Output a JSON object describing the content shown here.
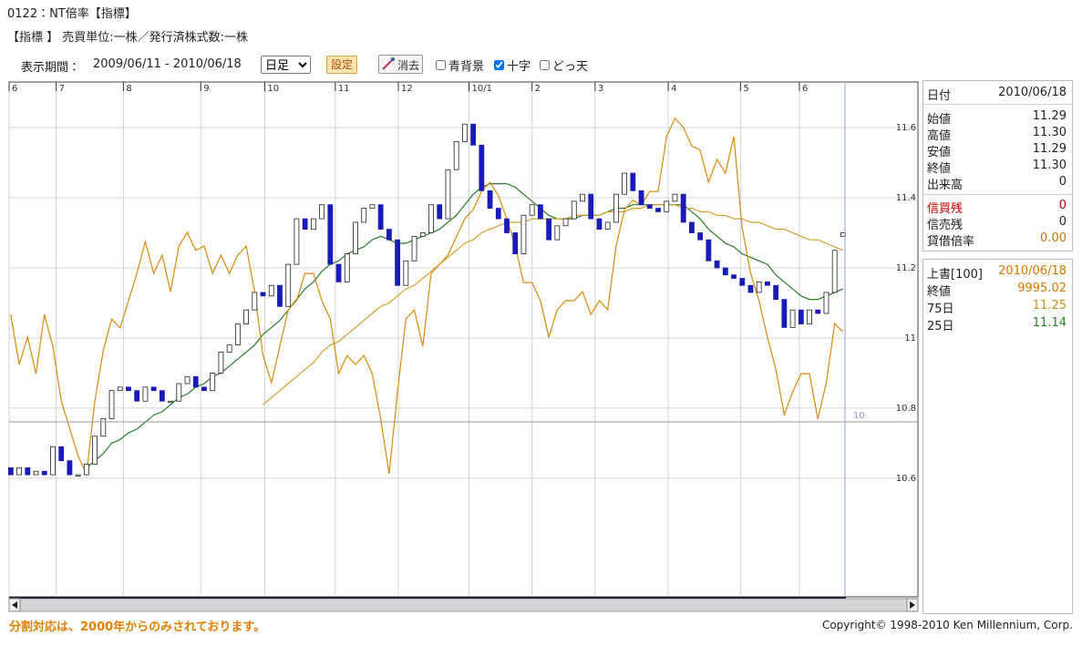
{
  "header": {
    "title": "0122：NT倍率【指標】",
    "subtitle": "【指標 】 売買単位:一株／発行済株式数:一株"
  },
  "toolbar": {
    "period_label": "表示期間：",
    "period": "2009/06/11 - 2010/06/18",
    "interval": "日足",
    "set_button": "設定",
    "clear_button": "消去",
    "options": [
      {
        "label": "青背景",
        "checked": false
      },
      {
        "label": "十字",
        "checked": true
      },
      {
        "label": "どっ天",
        "checked": false
      }
    ]
  },
  "chart_data": {
    "type": "candlestick",
    "xlim": [
      -0.2,
      107.9
    ],
    "xticks": [
      {
        "value": -0.2,
        "label": "6"
      },
      {
        "value": 5.4,
        "label": "7"
      },
      {
        "value": 13.4,
        "label": "8"
      },
      {
        "value": 22.6,
        "label": "9"
      },
      {
        "value": 30.2,
        "label": "10"
      },
      {
        "value": 38.6,
        "label": "11"
      },
      {
        "value": 46.1,
        "label": "12"
      },
      {
        "value": 54.5,
        "label": "10/1"
      },
      {
        "value": 62.0,
        "label": "2"
      },
      {
        "value": 69.5,
        "label": "3"
      },
      {
        "value": 78.2,
        "label": "4"
      },
      {
        "value": 86.8,
        "label": "5"
      },
      {
        "value": 93.8,
        "label": "6"
      }
    ],
    "ylim": [
      10.262,
      11.73
    ],
    "yticks": [
      11.6,
      11.4,
      11.2,
      11,
      10.8,
      10.6
    ],
    "y2lim": [
      8341,
      11555
    ],
    "grid": true,
    "up_color": "#ffffff",
    "down_color": "#1a1ab8",
    "open": [
      10.63,
      10.61,
      10.63,
      10.61,
      10.62,
      10.61,
      10.69,
      10.65,
      10.61,
      10.61,
      10.64,
      10.72,
      10.77,
      10.85,
      10.86,
      10.85,
      10.82,
      10.86,
      10.85,
      10.82,
      10.82,
      10.87,
      10.89,
      10.86,
      10.85,
      10.9,
      10.96,
      10.98,
      11.04,
      11.08,
      11.13,
      11.12,
      11.15,
      11.09,
      11.21,
      11.34,
      11.31,
      11.34,
      11.38,
      11.21,
      11.16,
      11.24,
      11.33,
      11.37,
      11.38,
      11.31,
      11.28,
      11.15,
      11.22,
      11.29,
      11.3,
      11.38,
      11.34,
      11.48,
      11.56,
      11.61,
      11.55,
      11.42,
      11.37,
      11.34,
      11.3,
      11.24,
      11.35,
      11.38,
      11.34,
      11.28,
      11.32,
      11.34,
      11.39,
      11.41,
      11.34,
      11.31,
      11.33,
      11.41,
      11.47,
      11.42,
      11.38,
      11.37,
      11.36,
      11.39,
      11.41,
      11.33,
      11.3,
      11.28,
      11.22,
      11.2,
      11.18,
      11.17,
      11.15,
      11.13,
      11.16,
      11.15,
      11.11,
      11.03,
      11.08,
      11.04,
      11.08,
      11.07,
      11.13,
      11.29
    ],
    "close": [
      10.61,
      10.63,
      10.61,
      10.62,
      10.61,
      10.69,
      10.65,
      10.61,
      10.61,
      10.64,
      10.72,
      10.77,
      10.85,
      10.86,
      10.85,
      10.82,
      10.86,
      10.85,
      10.82,
      10.82,
      10.87,
      10.89,
      10.86,
      10.85,
      10.9,
      10.96,
      10.98,
      11.04,
      11.08,
      11.13,
      11.12,
      11.15,
      11.09,
      11.21,
      11.34,
      11.31,
      11.34,
      11.38,
      11.21,
      11.16,
      11.24,
      11.33,
      11.37,
      11.38,
      11.31,
      11.28,
      11.15,
      11.22,
      11.29,
      11.3,
      11.38,
      11.34,
      11.48,
      11.56,
      11.61,
      11.55,
      11.42,
      11.37,
      11.34,
      11.3,
      11.24,
      11.35,
      11.38,
      11.34,
      11.28,
      11.32,
      11.34,
      11.39,
      11.41,
      11.34,
      11.31,
      11.33,
      11.41,
      11.47,
      11.42,
      11.38,
      11.37,
      11.36,
      11.39,
      11.41,
      11.33,
      11.3,
      11.28,
      11.22,
      11.2,
      11.18,
      11.17,
      11.15,
      11.13,
      11.16,
      11.15,
      11.11,
      11.03,
      11.08,
      11.04,
      11.08,
      11.07,
      11.13,
      11.25,
      11.3
    ],
    "series": [
      {
        "name": "25日",
        "color": "#2a7a2a",
        "values": [
          null,
          null,
          null,
          null,
          null,
          null,
          null,
          null,
          null,
          10.63,
          10.65,
          10.67,
          10.7,
          10.71,
          10.73,
          10.74,
          10.76,
          10.78,
          10.79,
          10.81,
          10.83,
          10.84,
          10.86,
          10.87,
          10.89,
          10.9,
          10.92,
          10.94,
          10.96,
          10.98,
          11.01,
          11.03,
          11.05,
          11.08,
          11.11,
          11.14,
          11.16,
          11.19,
          11.21,
          11.22,
          11.24,
          11.25,
          11.26,
          11.28,
          11.29,
          11.28,
          11.27,
          11.27,
          11.28,
          11.29,
          11.3,
          11.31,
          11.33,
          11.35,
          11.38,
          11.41,
          11.43,
          11.44,
          11.44,
          11.44,
          11.43,
          11.41,
          11.39,
          11.37,
          11.35,
          11.34,
          11.34,
          11.34,
          11.35,
          11.35,
          11.35,
          11.36,
          11.37,
          11.37,
          11.38,
          11.38,
          11.38,
          11.38,
          11.38,
          11.38,
          11.38,
          11.36,
          11.34,
          11.31,
          11.29,
          11.27,
          11.26,
          11.24,
          11.23,
          11.22,
          11.21,
          11.18,
          11.16,
          11.14,
          11.12,
          11.11,
          11.11,
          11.12,
          11.13,
          11.14
        ]
      },
      {
        "name": "75日",
        "color": "#d0a030",
        "values": [
          null,
          null,
          null,
          null,
          null,
          null,
          null,
          null,
          null,
          null,
          null,
          null,
          null,
          null,
          null,
          null,
          null,
          null,
          null,
          null,
          null,
          null,
          null,
          null,
          null,
          null,
          null,
          null,
          null,
          null,
          10.81,
          10.83,
          10.85,
          10.87,
          10.89,
          10.91,
          10.93,
          10.96,
          10.98,
          10.99,
          11.01,
          11.03,
          11.05,
          11.07,
          11.09,
          11.1,
          11.12,
          11.14,
          11.15,
          11.17,
          11.19,
          11.21,
          11.23,
          11.25,
          11.27,
          11.28,
          11.3,
          11.31,
          11.32,
          11.33,
          11.33,
          11.33,
          11.34,
          11.34,
          11.34,
          11.34,
          11.34,
          11.35,
          11.35,
          11.35,
          11.35,
          11.36,
          11.36,
          11.36,
          11.37,
          11.37,
          11.38,
          11.38,
          11.38,
          11.38,
          11.37,
          11.37,
          11.36,
          11.36,
          11.35,
          11.35,
          11.34,
          11.34,
          11.33,
          11.33,
          11.32,
          11.31,
          11.31,
          11.3,
          11.29,
          11.28,
          11.28,
          11.27,
          11.26,
          11.25
        ]
      },
      {
        "name": "上書[100]",
        "color": "#d98a10",
        "axis": "y2",
        "values": [
          10104,
          9791,
          9962,
          9734,
          10104,
          9905,
          9564,
          9393,
          9222,
          9108,
          9564,
          9877,
          10076,
          10019,
          10190,
          10360,
          10559,
          10360,
          10474,
          10246,
          10531,
          10616,
          10503,
          10531,
          10360,
          10474,
          10360,
          10474,
          10531,
          10246,
          9848,
          9678,
          9905,
          10133,
          10190,
          10360,
          10360,
          10190,
          10076,
          9734,
          9848,
          9791,
          9848,
          9734,
          9450,
          9108,
          9621,
          10076,
          10133,
          9905,
          10360,
          10417,
          10474,
          10588,
          10702,
          10759,
          10872,
          10929,
          10844,
          10702,
          10531,
          10303,
          10303,
          10190,
          9962,
          10133,
          10190,
          10190,
          10246,
          10104,
          10190,
          10133,
          10531,
          10759,
          10816,
          10787,
          10872,
          10872,
          11214,
          11328,
          11271,
          11157,
          11129,
          10929,
          11072,
          10986,
          11214,
          10645,
          10360,
          10190,
          9962,
          9763,
          9478,
          9621,
          9734,
          9734,
          9450,
          9678,
          10047,
          9995.02
        ]
      }
    ],
    "crosshair_label": "10"
  },
  "info_panel": {
    "date_label": "日付",
    "date": "2010/06/18",
    "rows": [
      {
        "label": "始値",
        "value": "11.29"
      },
      {
        "label": "高値",
        "value": "11.30"
      },
      {
        "label": "安値",
        "value": "11.29"
      },
      {
        "label": "終値",
        "value": "11.30"
      },
      {
        "label": "出来高",
        "value": "0"
      }
    ],
    "margin_rows": [
      {
        "label": "信買残",
        "value": "0"
      },
      {
        "label": "信売残",
        "value": "0"
      },
      {
        "label": "貸借倍率",
        "value": "0.00"
      }
    ],
    "overlay_date": "2010/06/18",
    "overlay_close_label": "終値",
    "overlay_close": "9995.02",
    "ma75": "11.25",
    "ma25": "11.14"
  },
  "footer": {
    "note": "分割対応は、2000年からのみされております。",
    "copyright": "Copyright© 1998-2010 Ken Millennium, Corp."
  }
}
